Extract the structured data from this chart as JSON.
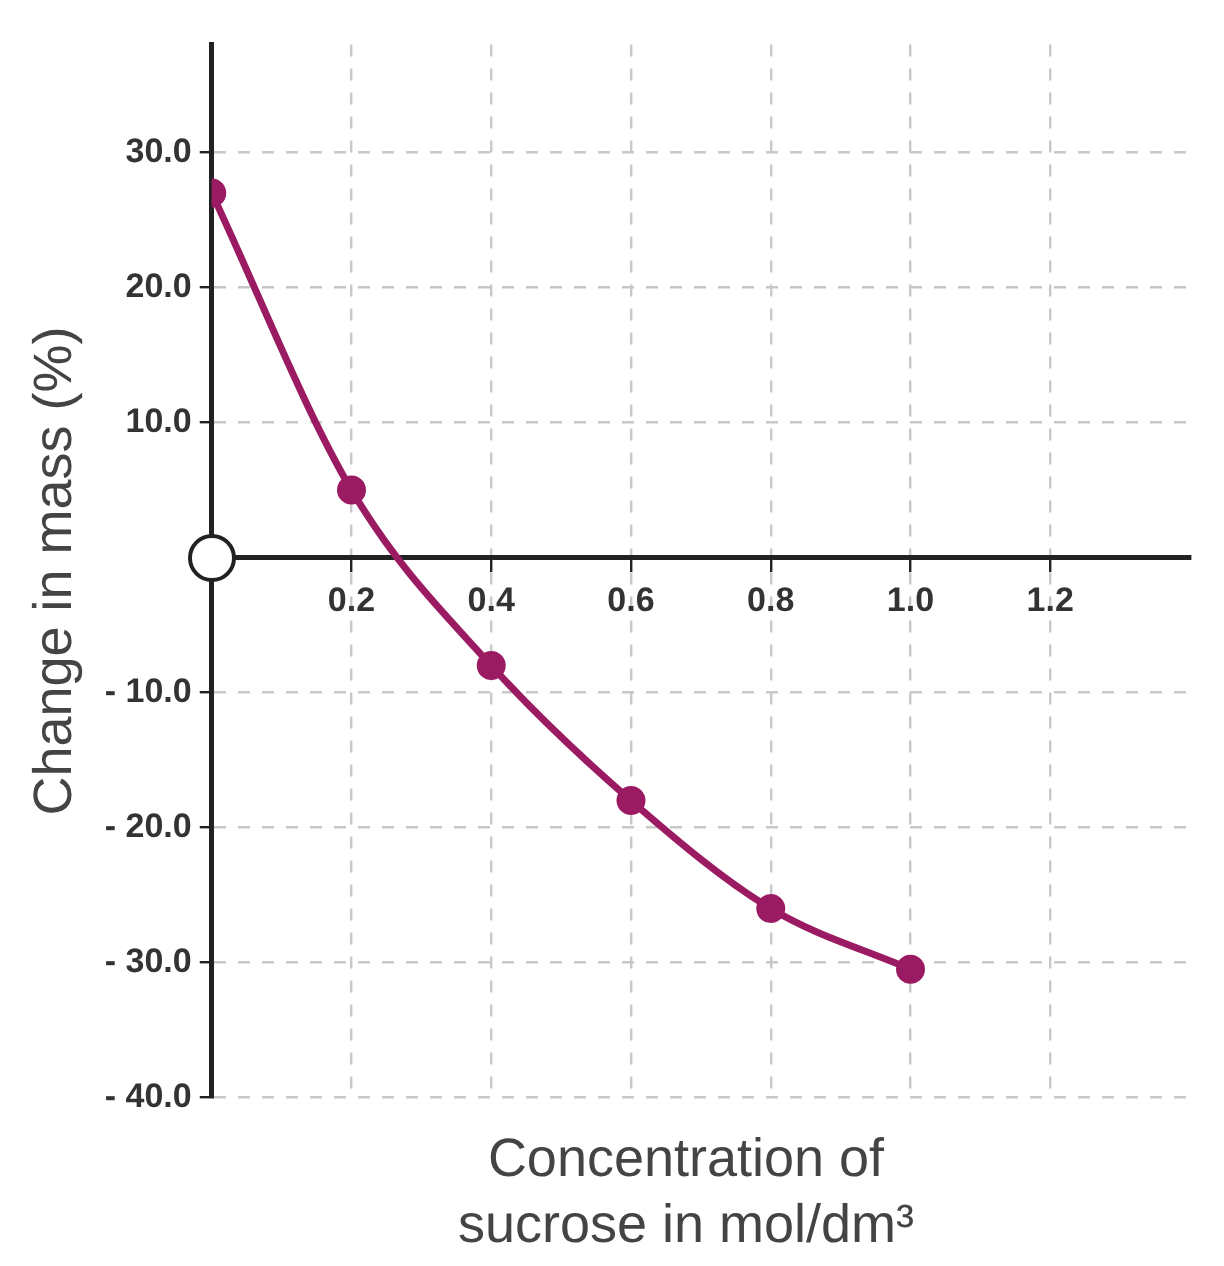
{
  "chart_data": {
    "type": "line",
    "xlabel": "Concentration of sucrose in mol/dm³",
    "ylabel": "Change in mass (%)",
    "x": [
      0,
      0.2,
      0.4,
      0.6,
      0.8,
      1.0
    ],
    "series": [
      {
        "color": "#9b1b63",
        "values": [
          27,
          5,
          -8,
          -18,
          -26,
          -30.5
        ]
      }
    ],
    "xlim": [
      0,
      1.4
    ],
    "xticks": [
      0.2,
      0.4,
      0.6,
      0.8,
      {
        "value": 1,
        "label": "1.0"
      },
      1.2
    ],
    "ylim": [
      -40,
      38
    ],
    "yticks": [
      {
        "value": 30,
        "label": "30.0"
      },
      {
        "value": 20,
        "label": "20.0"
      },
      {
        "value": 10,
        "label": "10.0"
      },
      {
        "value": -10,
        "label": "- 10.0"
      },
      {
        "value": -20,
        "label": "- 20.0"
      },
      {
        "value": -30,
        "label": "- 30.0"
      },
      {
        "value": -40,
        "label": "- 40.0"
      }
    ],
    "grid": true,
    "marker": "circle",
    "line_style": "solid",
    "legend": false
  }
}
